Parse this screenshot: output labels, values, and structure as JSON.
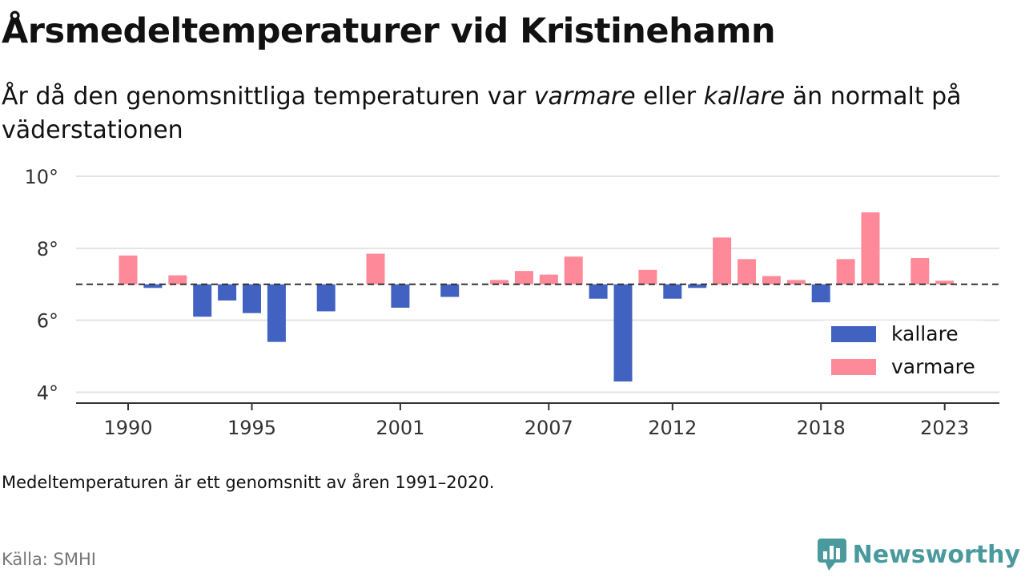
{
  "header": {
    "title": "Årsmedeltemperaturer vid Kristinehamn",
    "subtitle_part1": "År då den genomsnittliga temperaturen var ",
    "subtitle_warm": "varmare",
    "subtitle_mid": " eller ",
    "subtitle_cold": "kallare",
    "subtitle_part2": " än normalt på väderstationen"
  },
  "footer": {
    "note": "Medeltemperaturen är ett genomsnitt av åren 1991–2020.",
    "source": "Källa: SMHI",
    "brand": "Newsworthy"
  },
  "colors": {
    "kallare": "#4262c1",
    "varmare": "#fe8a99",
    "brand": "#4a9a9d"
  },
  "chart_data": {
    "type": "bar",
    "baseline": 7.0,
    "ylim": [
      3.7,
      10
    ],
    "yticks": [
      4,
      6,
      8,
      10
    ],
    "ytick_labels": [
      "4°",
      "6°",
      "8°",
      "10°"
    ],
    "xticks": [
      1990,
      1995,
      2001,
      2007,
      2012,
      2018,
      2023
    ],
    "grid": true,
    "legend_position": "right",
    "series": [
      {
        "name": "kallare",
        "color": "#4262c1"
      },
      {
        "name": "varmare",
        "color": "#fe8a99"
      }
    ],
    "x": [
      1990,
      1991,
      1992,
      1993,
      1994,
      1995,
      1996,
      1997,
      1998,
      1999,
      2000,
      2001,
      2002,
      2003,
      2004,
      2005,
      2006,
      2007,
      2008,
      2009,
      2010,
      2011,
      2012,
      2013,
      2014,
      2015,
      2016,
      2017,
      2018,
      2019,
      2020,
      2021,
      2022,
      2023
    ],
    "values": [
      7.8,
      6.9,
      7.25,
      6.1,
      6.55,
      6.2,
      5.4,
      7.0,
      6.25,
      7.0,
      7.85,
      6.35,
      7.0,
      6.65,
      7.0,
      7.12,
      7.37,
      7.27,
      7.77,
      6.6,
      4.3,
      7.4,
      6.6,
      6.9,
      8.3,
      7.7,
      7.23,
      7.12,
      6.5,
      7.7,
      9.0,
      7.0,
      7.73,
      7.1
    ]
  }
}
